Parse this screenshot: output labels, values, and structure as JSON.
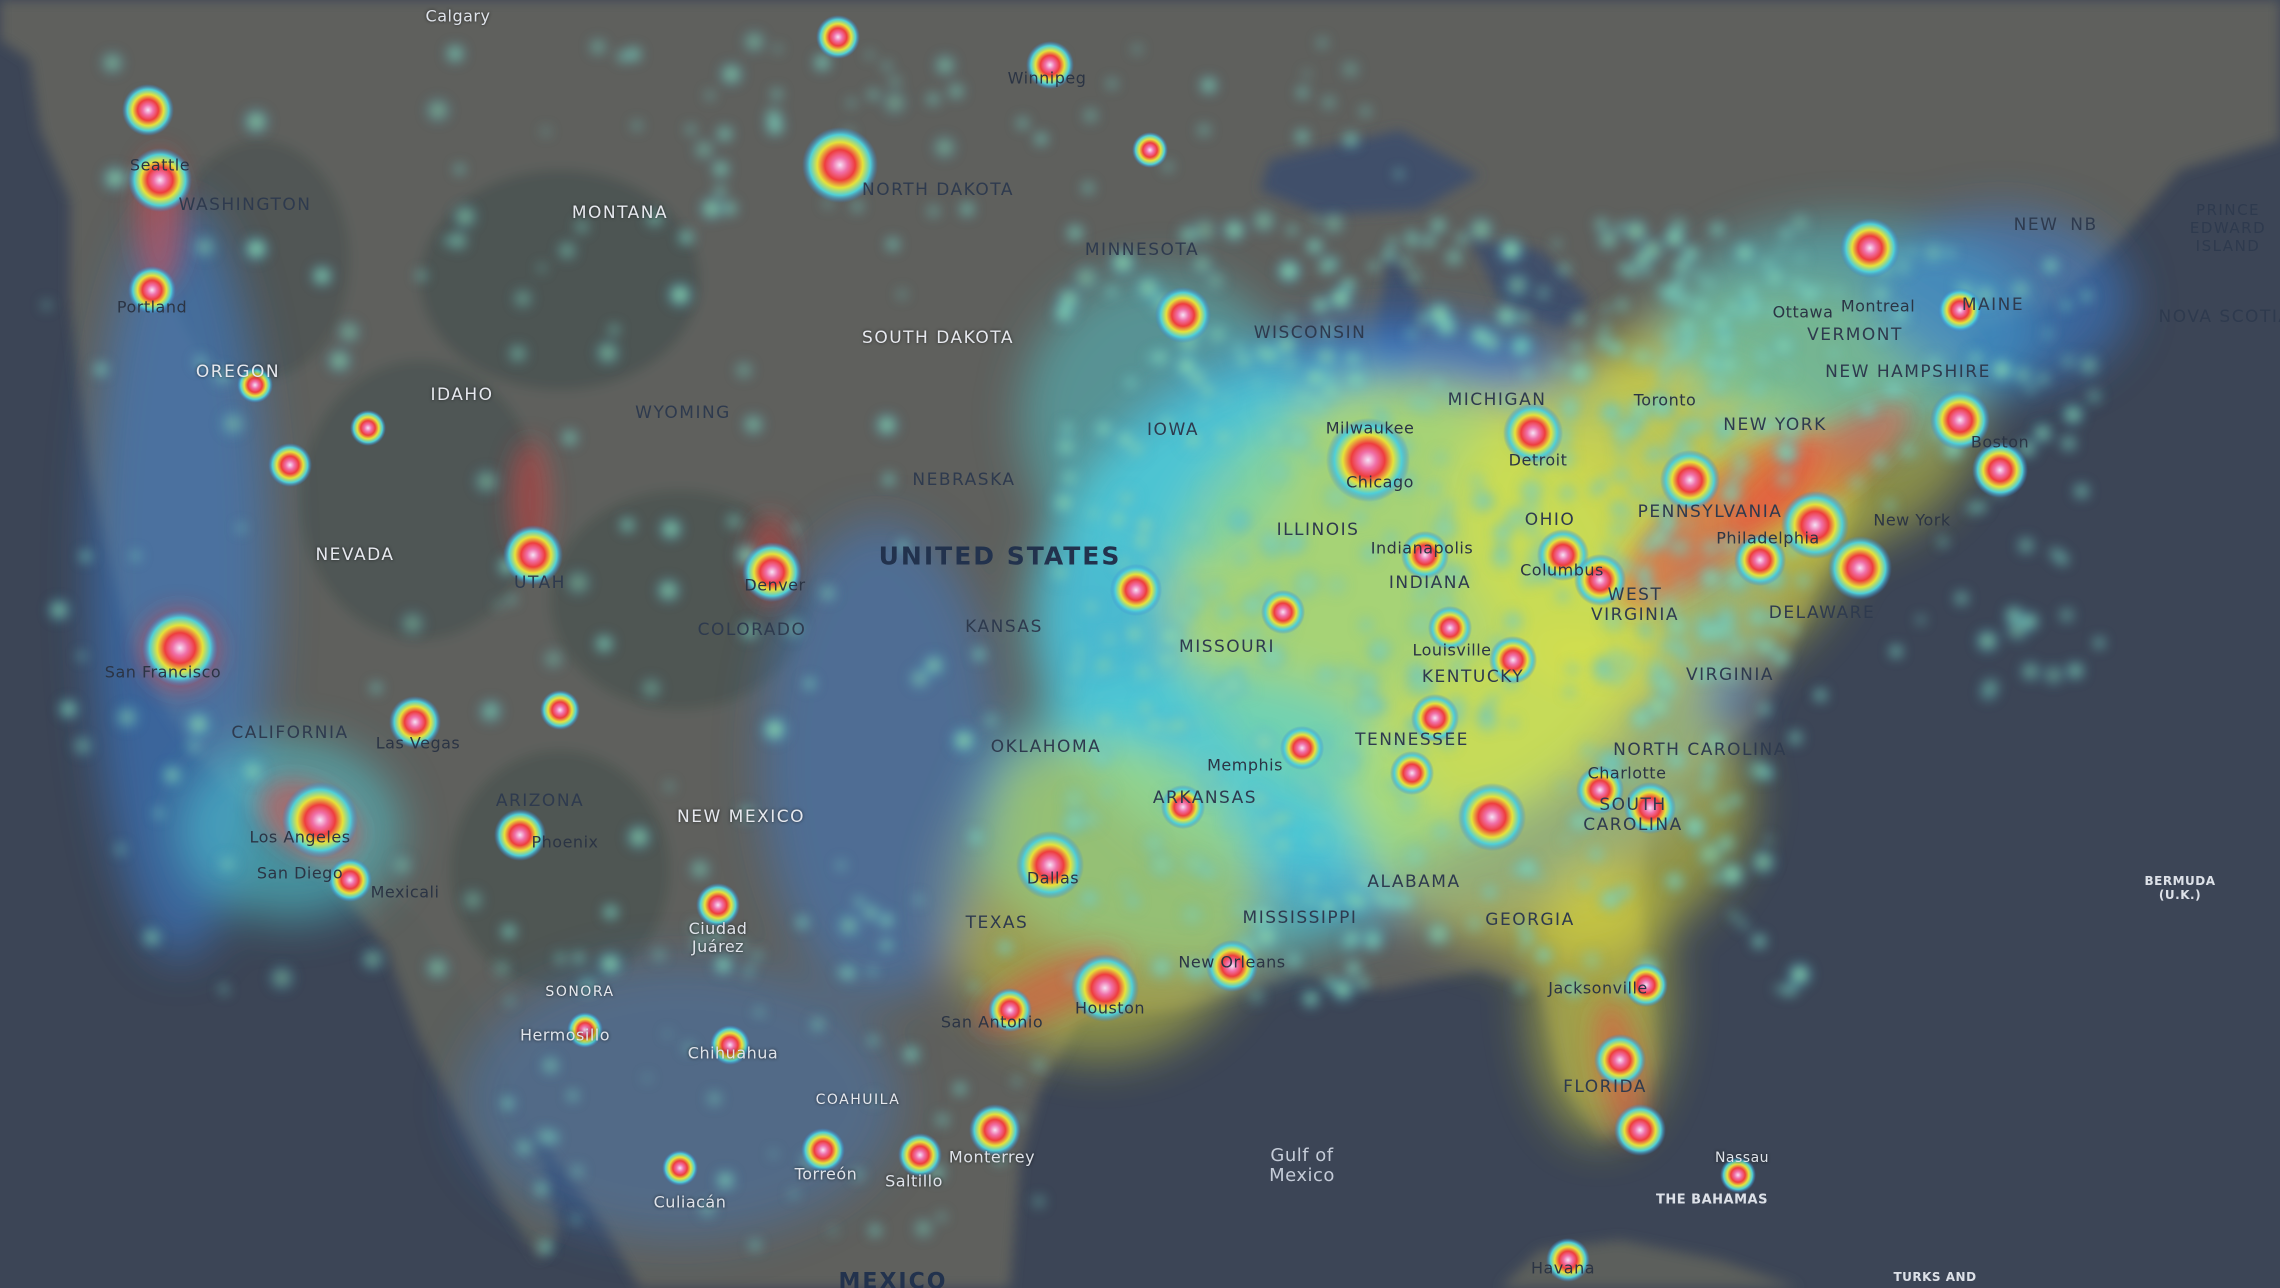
{
  "map": {
    "colors": {
      "ocean": "#3c4556",
      "land": "#5f625e",
      "land_dark": "#4d5350",
      "glow_low": "#3a7fd6",
      "glow_mid": "#4fd0d8",
      "glow_midhigh": "#e5e43a",
      "glow_high": "#ee3d3d",
      "glow_peak": "#f3d7f4"
    },
    "labels": {
      "country_us": "UNITED STATES",
      "country_mx": "MEXICO",
      "gulf": "Gulf of\nMexico",
      "bahamas": "THE BAHAMAS",
      "bermuda": "BERMUDA\n(U.K.)",
      "turks": "TURKS AND",
      "states": {
        "washington": "WASHINGTON",
        "oregon": "OREGON",
        "california": "CALIFORNIA",
        "nevada": "NEVADA",
        "idaho": "IDAHO",
        "montana": "MONTANA",
        "wyoming": "WYOMING",
        "utah": "UTAH",
        "arizona": "ARIZONA",
        "colorado": "COLORADO",
        "new_mexico": "NEW MEXICO",
        "north_dakota": "NORTH DAKOTA",
        "south_dakota": "SOUTH DAKOTA",
        "nebraska": "NEBRASKA",
        "kansas": "KANSAS",
        "oklahoma": "OKLAHOMA",
        "texas": "TEXAS",
        "minnesota": "MINNESOTA",
        "iowa": "IOWA",
        "missouri": "MISSOURI",
        "arkansas": "ARKANSAS",
        "wisconsin": "WISCONSIN",
        "illinois": "ILLINOIS",
        "michigan": "MICHIGAN",
        "indiana": "INDIANA",
        "ohio": "OHIO",
        "kentucky": "KENTUCKY",
        "tennessee": "TENNESSEE",
        "mississippi": "MISSISSIPPI",
        "alabama": "ALABAMA",
        "georgia": "GEORGIA",
        "florida": "FLORIDA",
        "south_carolina": "SOUTH\nCAROLINA",
        "north_carolina": "NORTH CAROLINA",
        "virginia": "VIRGINIA",
        "west_virginia": "WEST\nVIRGINIA",
        "pennsylvania": "PENNSYLVANIA",
        "new_york": "NEW YORK",
        "vermont": "VERMONT",
        "new_hampshire": "NEW HAMPSHIRE",
        "maine": "MAINE",
        "delaware": "DELAWARE",
        "nb": "NB",
        "new": "NEW",
        "prince_edward": "PRINCE\nEDWARD\nISLAND",
        "nova_scotia": "NOVA SCOTIA",
        "sonora": "SONORA",
        "coahuila": "COAHUILA"
      },
      "cities": {
        "calgary": "Calgary",
        "winnipeg": "Winnipeg",
        "seattle": "Seattle",
        "portland": "Portland",
        "san_francisco": "San Francisco",
        "las_vegas": "Las Vegas",
        "los_angeles": "Los Angeles",
        "san_diego": "San Diego",
        "mexicali": "Mexicali",
        "phoenix": "Phoenix",
        "denver": "Denver",
        "ciudad_juarez": "Ciudad\nJuárez",
        "hermosillo": "Hermosillo",
        "chihuahua": "Chihuahua",
        "torreon": "Torreón",
        "saltillo": "Saltillo",
        "monterrey": "Monterrey",
        "culiacan": "Culiacán",
        "dallas": "Dallas",
        "san_antonio": "San Antonio",
        "houston": "Houston",
        "memphis": "Memphis",
        "new_orleans": "New Orleans",
        "milwaukee": "Milwaukee",
        "chicago": "Chicago",
        "detroit": "Detroit",
        "toronto": "Toronto",
        "ottawa": "Ottawa",
        "montreal": "Montreal",
        "boston": "Boston",
        "new_york": "New York",
        "philadelphia": "Philadelphia",
        "columbus": "Columbus",
        "indianapolis": "Indianapolis",
        "louisville": "Louisville",
        "charlotte": "Charlotte",
        "jacksonville": "Jacksonville",
        "nassau": "Nassau",
        "havana": "Havana"
      }
    }
  }
}
